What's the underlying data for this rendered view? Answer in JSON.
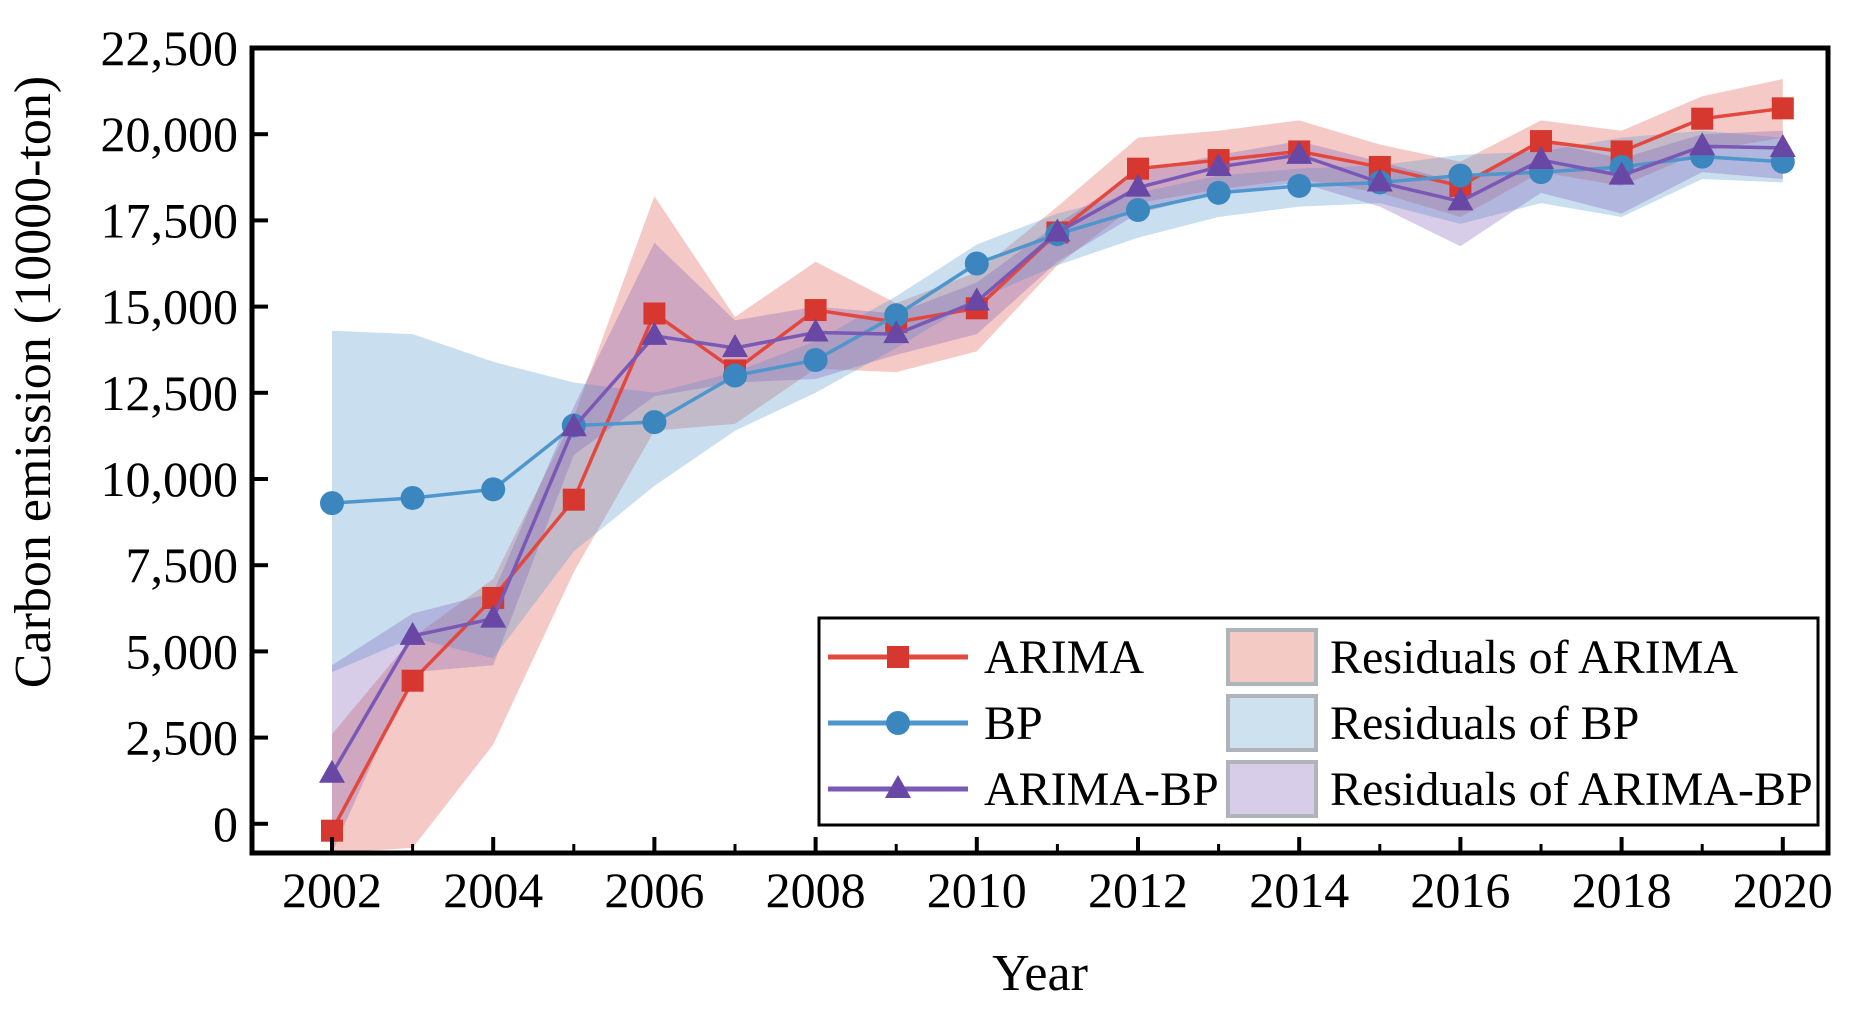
{
  "figure": {
    "ylabel": "Carbon emission (10000-ton)",
    "xlabel": "Year"
  },
  "chart_data": {
    "type": "line",
    "x": [
      2002,
      2003,
      2004,
      2005,
      2006,
      2007,
      2008,
      2009,
      2010,
      2011,
      2012,
      2013,
      2014,
      2015,
      2016,
      2017,
      2018,
      2019,
      2020
    ],
    "xlim": [
      2001.0,
      2020.56
    ],
    "ylim": [
      -840,
      22500
    ],
    "x_major_tick_labels": [
      "2002",
      "2004",
      "2006",
      "2008",
      "2010",
      "2012",
      "2014",
      "2016",
      "2018",
      "2020"
    ],
    "x_major_tick_years": [
      2002,
      2004,
      2006,
      2008,
      2010,
      2012,
      2014,
      2016,
      2018,
      2020
    ],
    "x_minor_tick_years": [
      2003,
      2005,
      2007,
      2009,
      2011,
      2013,
      2015,
      2017,
      2019
    ],
    "y_tick_values": [
      0,
      2500,
      5000,
      7500,
      10000,
      12500,
      15000,
      17500,
      20000,
      22500
    ],
    "y_tick_labels": [
      "0",
      "2,500",
      "5,000",
      "7,500",
      "10,000",
      "12,500",
      "15,000",
      "17,500",
      "20,000",
      "22,500"
    ],
    "xlabel": "Year",
    "ylabel": "Carbon emission (10000-ton)",
    "grid": false,
    "legend_position": "lower-right-inside",
    "series": [
      {
        "name": "ARIMA",
        "marker": "square",
        "color": "#E2483D",
        "marker_color": "#D6372E",
        "values": [
          -200,
          4150,
          6550,
          9400,
          14800,
          13150,
          14900,
          14550,
          14950,
          17150,
          19000,
          19250,
          19500,
          19050,
          18500,
          19800,
          19500,
          20450,
          20750
        ]
      },
      {
        "name": "BP",
        "marker": "circle",
        "color": "#4E96CC",
        "marker_color": "#3B86BE",
        "values": [
          9300,
          9450,
          9700,
          11550,
          11650,
          13000,
          13450,
          14750,
          16250,
          17100,
          17800,
          18300,
          18500,
          18600,
          18800,
          18900,
          19050,
          19350,
          19200
        ]
      },
      {
        "name": "ARIMA-BP",
        "marker": "triangle",
        "color": "#7A58B5",
        "marker_color": "#6847A5",
        "values": [
          1450,
          5450,
          5950,
          11500,
          14150,
          13800,
          14250,
          14200,
          15150,
          17150,
          18450,
          19050,
          19400,
          18600,
          18050,
          19250,
          18800,
          19650,
          19600
        ]
      }
    ],
    "bands": [
      {
        "name": "Residuals of ARIMA",
        "color": "#E0584E",
        "opacity": 0.32,
        "legend_fill": "#F4CAC5",
        "lower": [
          -840,
          -700,
          2300,
          7300,
          11400,
          11600,
          13200,
          13100,
          13700,
          16200,
          18000,
          18400,
          18700,
          18300,
          17600,
          18900,
          18500,
          19500,
          19900
        ],
        "upper": [
          2600,
          5400,
          7100,
          11800,
          18200,
          14700,
          16300,
          15100,
          16000,
          17900,
          19900,
          20100,
          20400,
          19700,
          19200,
          20400,
          20100,
          21100,
          21600
        ]
      },
      {
        "name": "Residuals of BP",
        "color": "#5B9BCF",
        "opacity": 0.33,
        "legend_fill": "#CEE1EE",
        "lower": [
          4400,
          5400,
          4800,
          7900,
          9800,
          11400,
          12500,
          13800,
          15200,
          16200,
          17000,
          17600,
          17900,
          18000,
          17400,
          18000,
          17600,
          18700,
          18600
        ],
        "upper": [
          14300,
          14200,
          13400,
          12800,
          12500,
          13100,
          14000,
          15300,
          16800,
          17700,
          18300,
          18800,
          19000,
          19100,
          19400,
          19500,
          19900,
          20100,
          19900
        ]
      },
      {
        "name": "Residuals of ARIMA-BP",
        "color": "#7A58B5",
        "opacity": 0.3,
        "legend_fill": "#D7CDE9",
        "lower": [
          -840,
          4400,
          4600,
          10700,
          12400,
          12800,
          12900,
          13600,
          14200,
          16300,
          17700,
          18300,
          18600,
          17900,
          16750,
          18300,
          17700,
          18900,
          18700
        ],
        "upper": [
          4600,
          6100,
          6700,
          12100,
          16850,
          14600,
          15000,
          14800,
          15700,
          17400,
          18900,
          19400,
          19800,
          19200,
          18600,
          19800,
          19300,
          20000,
          20100
        ]
      }
    ]
  }
}
